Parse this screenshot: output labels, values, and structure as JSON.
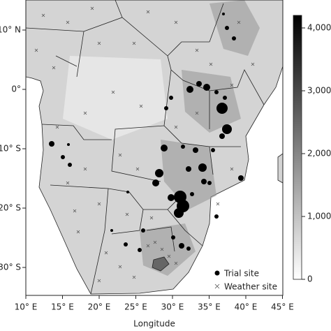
{
  "map": {
    "xlabel": "Longitude",
    "xticks": [
      {
        "value": 10,
        "label": "10° E"
      },
      {
        "value": 15,
        "label": "15° E"
      },
      {
        "value": 20,
        "label": "20° E"
      },
      {
        "value": 25,
        "label": "25° E"
      },
      {
        "value": 30,
        "label": "30° E"
      },
      {
        "value": 35,
        "label": "35° E"
      },
      {
        "value": 40,
        "label": "40° E"
      },
      {
        "value": 45,
        "label": "45° E"
      }
    ],
    "yticks": [
      {
        "value": 10,
        "label": "10° N"
      },
      {
        "value": 0,
        "label": "0°"
      },
      {
        "value": -10,
        "label": "10° S"
      },
      {
        "value": -20,
        "label": "20° S"
      },
      {
        "value": -30,
        "label": "30° S"
      }
    ],
    "legend": [
      "Trial site",
      "Weather site"
    ],
    "colorbar": {
      "lim": [
        0,
        4200
      ],
      "ticks": [
        {
          "value": 0,
          "label": "0"
        },
        {
          "value": 1000,
          "label": "1,000"
        },
        {
          "value": 2000,
          "label": "2,000"
        },
        {
          "value": 3000,
          "label": "3,000"
        },
        {
          "value": 4000,
          "label": "4,000"
        }
      ]
    }
  }
}
